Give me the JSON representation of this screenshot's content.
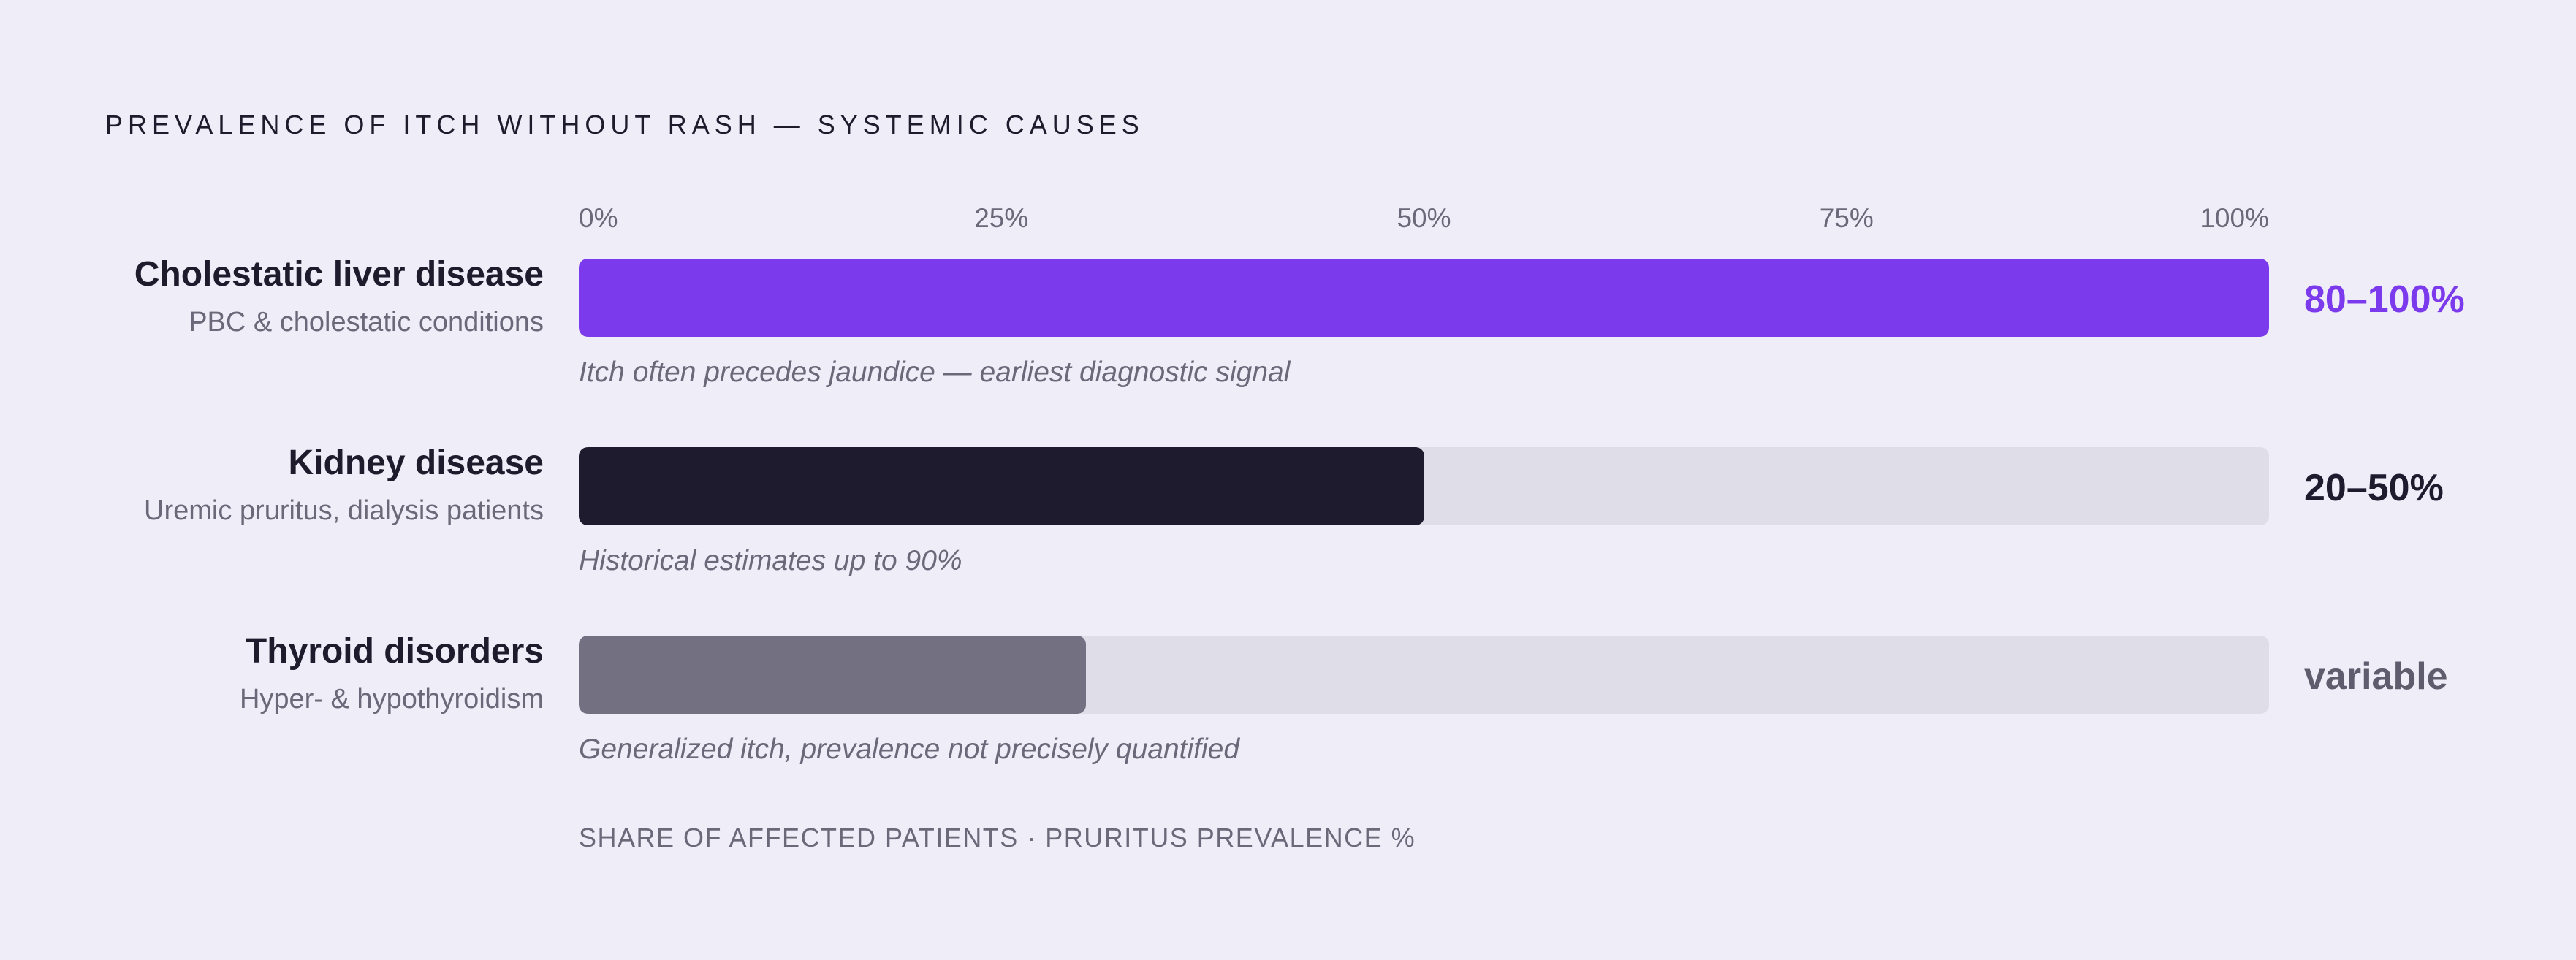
{
  "chart_data": {
    "type": "bar",
    "orientation": "horizontal",
    "title": "PREVALENCE OF ITCH WITHOUT RASH — SYSTEMIC CAUSES",
    "xlabel": "SHARE OF AFFECTED PATIENTS · PRURITUS PREVALENCE %",
    "xlim": [
      0,
      100
    ],
    "ticks": [
      "0%",
      "25%",
      "50%",
      "75%",
      "100%"
    ],
    "grid": false,
    "rows": [
      {
        "name": "Cholestatic liver disease",
        "subtitle": "PBC & cholestatic conditions",
        "value": 100,
        "value_label": "80–100%",
        "note": "Itch often precedes jaundice — earliest diagnostic signal",
        "bar_color": "#7c3aed",
        "label_color": "#7c3aed"
      },
      {
        "name": "Kidney disease",
        "subtitle": "Uremic pruritus, dialysis patients",
        "value": 50,
        "value_label": "20–50%",
        "note": "Historical estimates up to 90%",
        "bar_color": "#1e1b2e",
        "label_color": "#1e1b2e"
      },
      {
        "name": "Thyroid disorders",
        "subtitle": "Hyper- & hypothyroidism",
        "value": 30,
        "value_label": "variable",
        "note": "Generalized itch, prevalence not precisely quantified",
        "bar_color": "#737081",
        "label_color": "#5f5c6d"
      }
    ]
  },
  "colors": {
    "background": "#efedf8",
    "track": "#dedde8",
    "text_primary": "#1d1b2c",
    "text_muted": "#6b6879"
  }
}
